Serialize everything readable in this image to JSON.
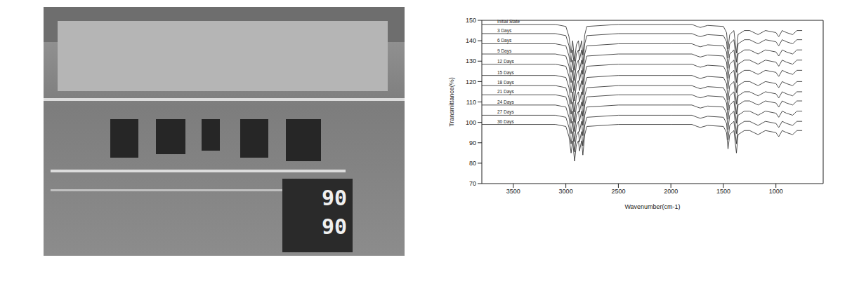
{
  "photo": {
    "display_top": "90",
    "display_bottom": "90"
  },
  "chart_data": {
    "type": "line",
    "x_label": "Wavenumber(cm-1)",
    "y_label": "Transmittance(%)",
    "xlim": [
      3800,
      550
    ],
    "xticks": [
      3500,
      3000,
      2500,
      2000,
      1500,
      1000
    ],
    "ylim": [
      70,
      150
    ],
    "yticks": [
      70,
      80,
      90,
      100,
      110,
      120,
      130,
      140,
      150
    ],
    "grid": false,
    "color": "#222222",
    "x": [
      3800,
      3500,
      3100,
      3000,
      2970,
      2950,
      2935,
      2917,
      2900,
      2880,
      2870,
      2850,
      2838,
      2820,
      2800,
      2500,
      2000,
      1800,
      1750,
      1720,
      1650,
      1500,
      1470,
      1456,
      1440,
      1400,
      1376,
      1360,
      1300,
      1250,
      1170,
      1100,
      1000,
      973,
      940,
      900,
      841,
      800,
      750
    ],
    "series": [
      {
        "name": "Initial State",
        "values": [
          148,
          148,
          148,
          147,
          142,
          134,
          140,
          130,
          138,
          140,
          135,
          140,
          133,
          143,
          147,
          148,
          148,
          148,
          147,
          146.5,
          147.5,
          147,
          144,
          136,
          143,
          145,
          134,
          143,
          145,
          145,
          143,
          145,
          144,
          142,
          145,
          144,
          143,
          145,
          145
        ]
      },
      {
        "name": "3 Days",
        "values": [
          143.5,
          143.5,
          143.5,
          142.5,
          137.5,
          129.5,
          135.5,
          125.5,
          133.5,
          135.5,
          130.5,
          135.5,
          128.5,
          138.5,
          142.5,
          143.5,
          143.5,
          143.5,
          142.5,
          142,
          143,
          142.5,
          139.5,
          131.5,
          138.5,
          140.5,
          129.5,
          138.5,
          140.5,
          140.5,
          138.5,
          140.5,
          139.5,
          137.5,
          140.5,
          139.5,
          138.5,
          140.5,
          140.5
        ]
      },
      {
        "name": "6 Days",
        "values": [
          138.5,
          138.5,
          138.5,
          137.5,
          132.5,
          124.5,
          130.5,
          120.5,
          128.5,
          130.5,
          125.5,
          130.5,
          123.5,
          133.5,
          137.5,
          138.5,
          138.5,
          138.5,
          137.5,
          137,
          138,
          137.5,
          134.5,
          126.5,
          133.5,
          135.5,
          124.5,
          133.5,
          135.5,
          135.5,
          133.5,
          135.5,
          134.5,
          132.5,
          135.5,
          134.5,
          133.5,
          135.5,
          135.5
        ]
      },
      {
        "name": "9 Days",
        "values": [
          133.5,
          133.5,
          133.5,
          132.5,
          127.5,
          119.5,
          125.5,
          115.5,
          123.5,
          125.5,
          120.5,
          125.5,
          118.5,
          128.5,
          132.5,
          133.5,
          133.5,
          133.5,
          132.5,
          132,
          133,
          132.5,
          129.5,
          121.5,
          128.5,
          130.5,
          119.5,
          128.5,
          130.5,
          130.5,
          128.5,
          130.5,
          129.5,
          127.5,
          130.5,
          129.5,
          128.5,
          130.5,
          130.5
        ]
      },
      {
        "name": "12 Days",
        "values": [
          128.5,
          128.5,
          128.5,
          127.5,
          122.5,
          114.5,
          120.5,
          110.5,
          118.5,
          120.5,
          115.5,
          120.5,
          113.5,
          123.5,
          127.5,
          128.5,
          128.5,
          128.5,
          127.5,
          127,
          128,
          127.5,
          124.5,
          116.5,
          123.5,
          125.5,
          114.5,
          123.5,
          125.5,
          125.5,
          123.5,
          125.5,
          124.5,
          122.5,
          125.5,
          124.5,
          123.5,
          125.5,
          125.5
        ]
      },
      {
        "name": "15 Days",
        "values": [
          123,
          123,
          123,
          122,
          117,
          109,
          115,
          105,
          113,
          115,
          110,
          115,
          108,
          118,
          122,
          123,
          123,
          123,
          122,
          121.5,
          122.5,
          122,
          119,
          111,
          118,
          120,
          109,
          118,
          120,
          120,
          118,
          120,
          119,
          117,
          120,
          119,
          118,
          120,
          120
        ]
      },
      {
        "name": "18 Days",
        "values": [
          118,
          118,
          118,
          117,
          112,
          104,
          110,
          100,
          108,
          110,
          105,
          110,
          103,
          113,
          117,
          118,
          118,
          118,
          117,
          116.5,
          117.5,
          117,
          114,
          106,
          113,
          115,
          104,
          113,
          115,
          115,
          113,
          115,
          114,
          112,
          115,
          114,
          113,
          115,
          115
        ]
      },
      {
        "name": "21 Days",
        "values": [
          113.5,
          113.5,
          113.5,
          112.5,
          107.5,
          99.5,
          105.5,
          95.5,
          103.5,
          105.5,
          100.5,
          105.5,
          98.5,
          108.5,
          112.5,
          113.5,
          113.5,
          113.5,
          112.5,
          112,
          113,
          112.5,
          109.5,
          101.5,
          108.5,
          110.5,
          99.5,
          108.5,
          110.5,
          110.5,
          108.5,
          110.5,
          109.5,
          107.5,
          110.5,
          109.5,
          108.5,
          110.5,
          110.5
        ]
      },
      {
        "name": "24 Days",
        "values": [
          108.5,
          108.5,
          108.5,
          107.5,
          102.5,
          94.5,
          100.5,
          90.5,
          98.5,
          100.5,
          95.5,
          100.5,
          93.5,
          103.5,
          107.5,
          108.5,
          108.5,
          108.5,
          107.5,
          107,
          108,
          107.5,
          104.5,
          96.5,
          103.5,
          105.5,
          94.5,
          103.5,
          105.5,
          105.5,
          103.5,
          105.5,
          104.5,
          102.5,
          105.5,
          104.5,
          103.5,
          105.5,
          105.5
        ]
      },
      {
        "name": "27 Days",
        "values": [
          103.5,
          103.5,
          103.5,
          102.5,
          97.5,
          89.5,
          95.5,
          85.5,
          93.5,
          95.5,
          90.5,
          95.5,
          88.5,
          98.5,
          102.5,
          103.5,
          103.5,
          103.5,
          102.5,
          102,
          103,
          102.5,
          99.5,
          91.5,
          98.5,
          100.5,
          89.5,
          98.5,
          100.5,
          100.5,
          98.5,
          100.5,
          99.5,
          97.5,
          100.5,
          99.5,
          98.5,
          100.5,
          100.5
        ]
      },
      {
        "name": "30 Days",
        "values": [
          99,
          99,
          99,
          98,
          93,
          85,
          91,
          81,
          89,
          91,
          86,
          91,
          84,
          94,
          98,
          99,
          99,
          99,
          98,
          97.5,
          98.5,
          98,
          95,
          87,
          94,
          96,
          85,
          94,
          96,
          96,
          94,
          96,
          95,
          93,
          96,
          95,
          94,
          96,
          96
        ]
      }
    ]
  }
}
